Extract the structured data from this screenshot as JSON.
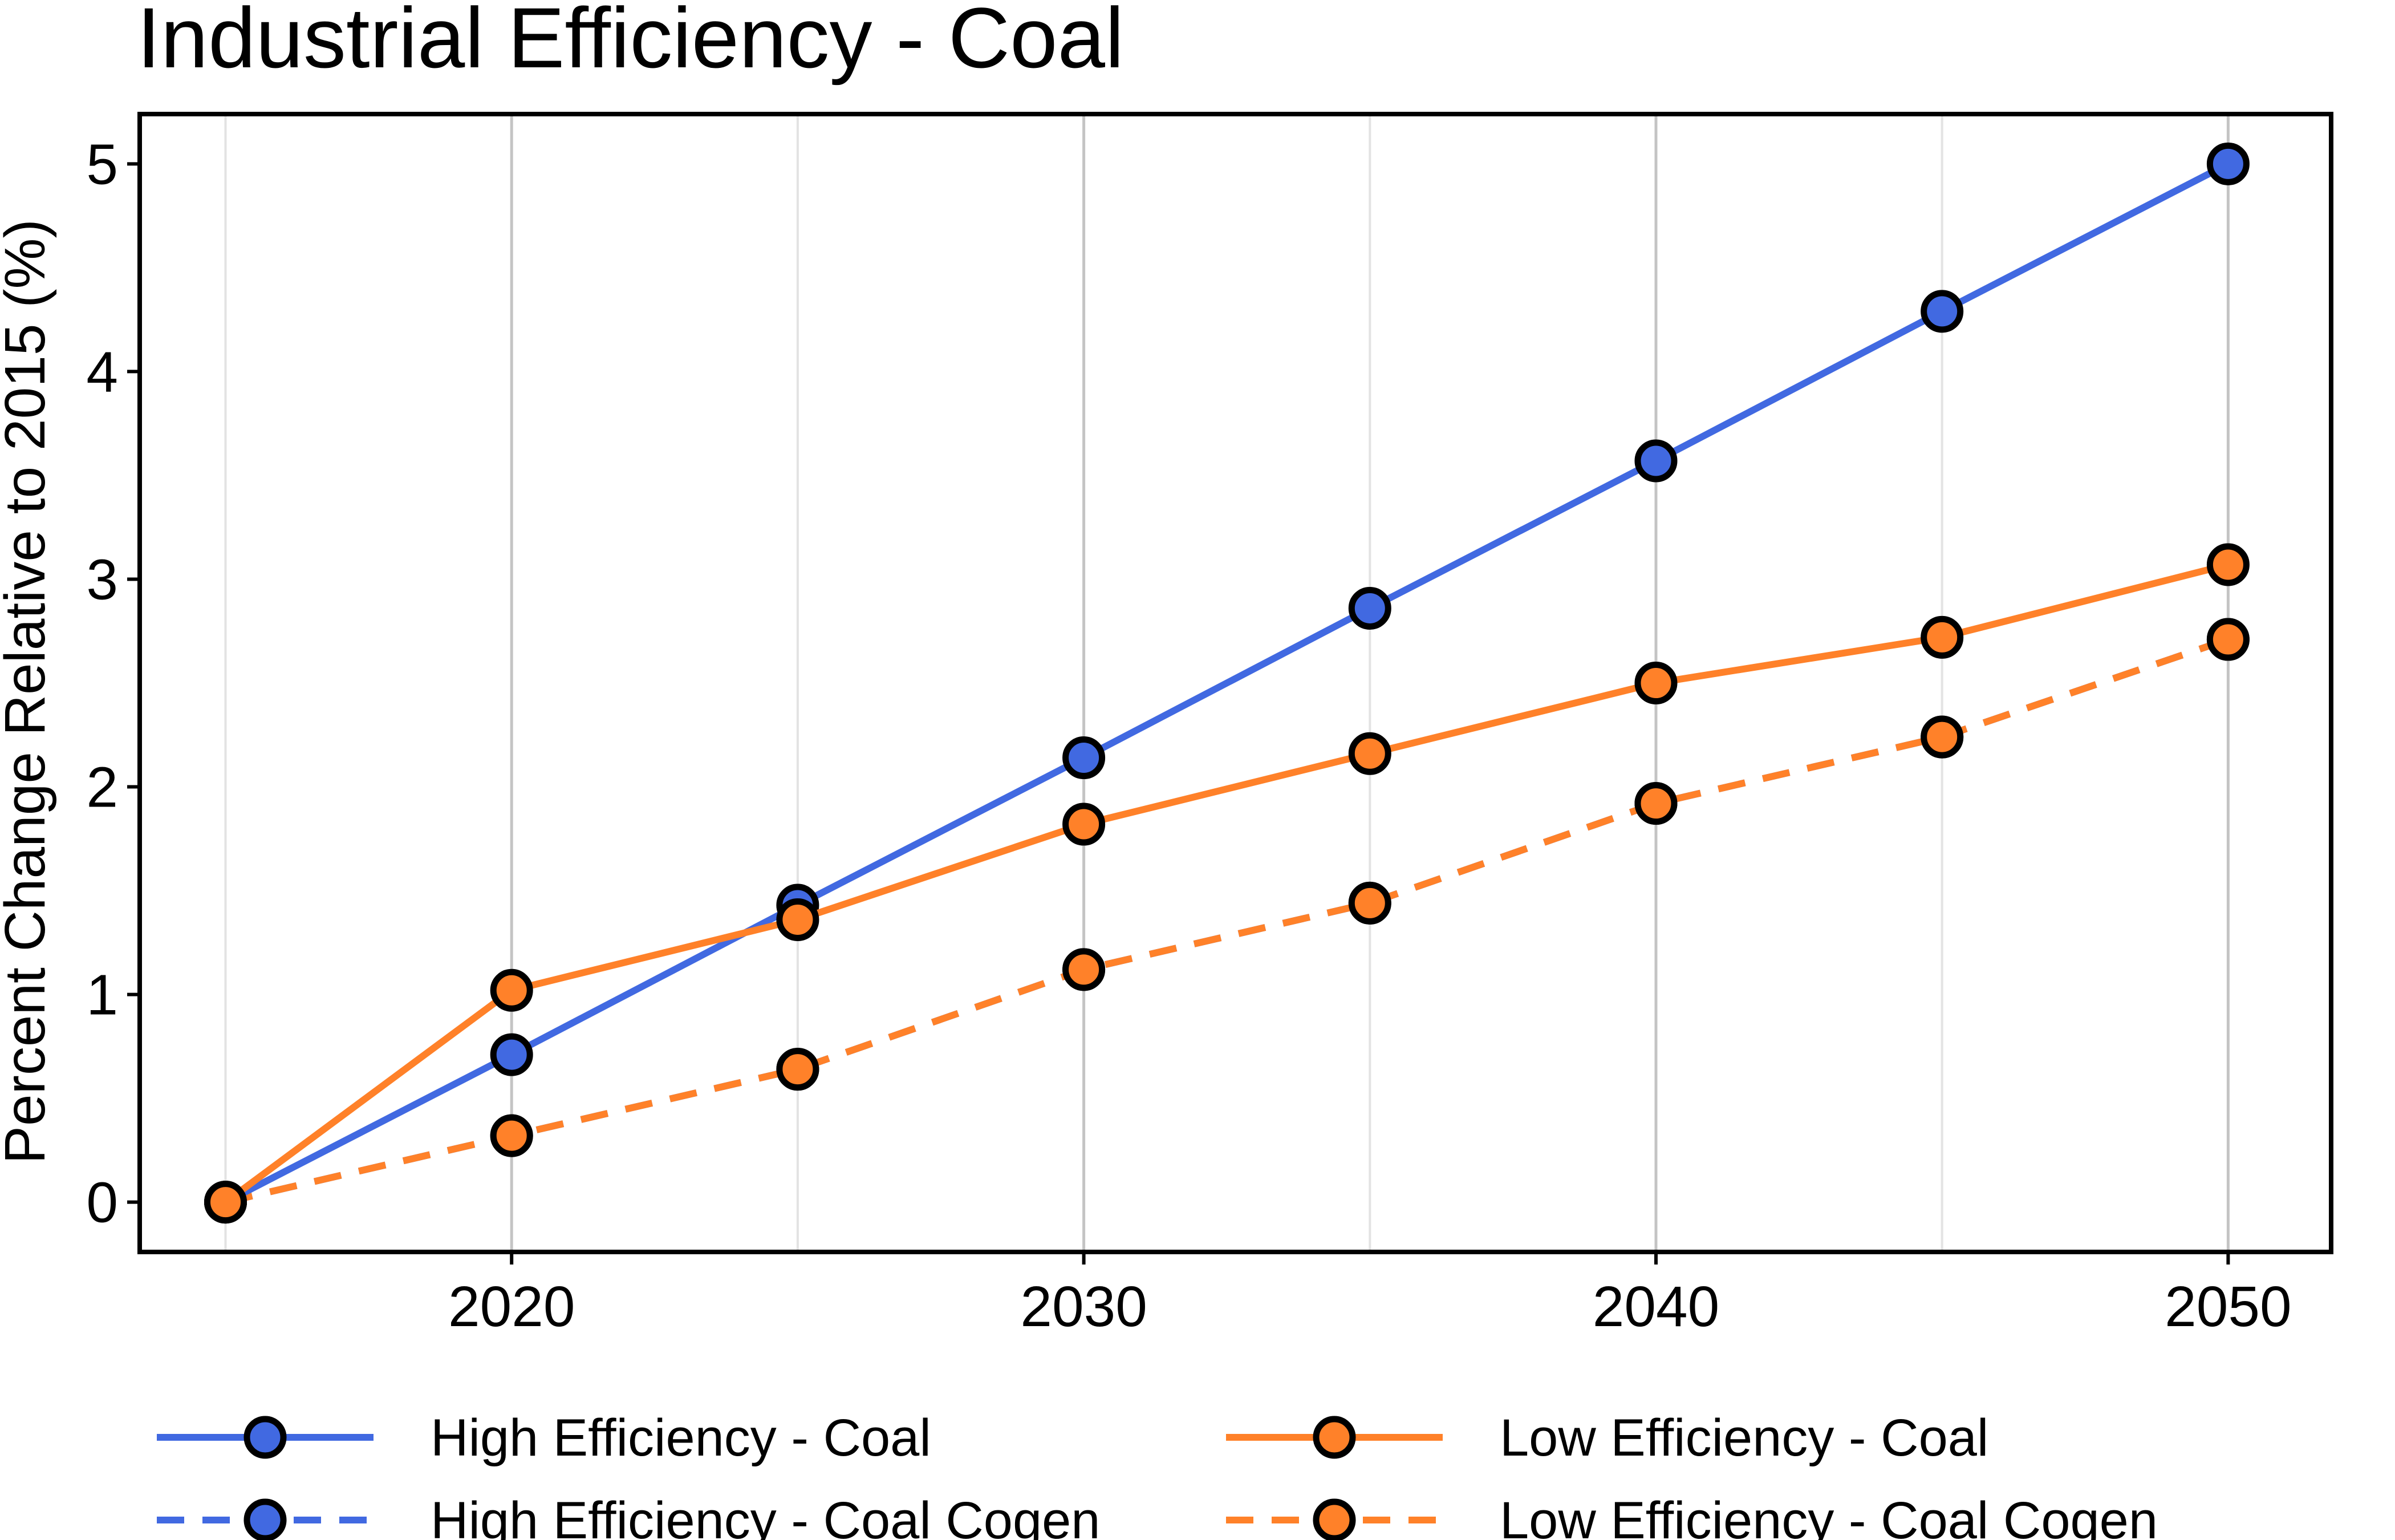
{
  "chart_data": {
    "type": "line",
    "title": "Industrial Efficiency - Coal",
    "xlabel": "",
    "ylabel": "Percent Change Relative to 2015 (%)",
    "x": [
      2015,
      2020,
      2025,
      2030,
      2035,
      2040,
      2045,
      2050
    ],
    "xlim": [
      2013.5,
      2051.8
    ],
    "ylim": [
      -0.24,
      5.24
    ],
    "x_ticks": [
      2020,
      2030,
      2040,
      2050
    ],
    "y_ticks": [
      0,
      1,
      2,
      3,
      4,
      5
    ],
    "grid": {
      "x_major": true,
      "x_minor": true,
      "y": false
    },
    "legend_position": "bottom",
    "series": [
      {
        "name": "High Efficiency - Coal",
        "color": "#4169E1",
        "linestyle": "solid",
        "values": [
          0,
          0.71,
          1.43,
          2.14,
          2.86,
          3.57,
          4.29,
          5.0
        ]
      },
      {
        "name": "High Efficiency - Coal Cogen",
        "color": "#4169E1",
        "linestyle": "dashed",
        "values": [
          0,
          0.32,
          0.64,
          1.12,
          1.44,
          1.92,
          2.24,
          2.71
        ]
      },
      {
        "name": "Low Efficiency - Coal",
        "color": "#FF8129",
        "linestyle": "solid",
        "values": [
          0,
          1.02,
          1.36,
          1.82,
          2.16,
          2.5,
          2.72,
          3.07
        ]
      },
      {
        "name": "Low Efficiency - Coal Cogen",
        "color": "#FF8129",
        "linestyle": "dashed",
        "values": [
          0,
          0.32,
          0.64,
          1.12,
          1.44,
          1.92,
          2.24,
          2.71
        ]
      }
    ]
  }
}
